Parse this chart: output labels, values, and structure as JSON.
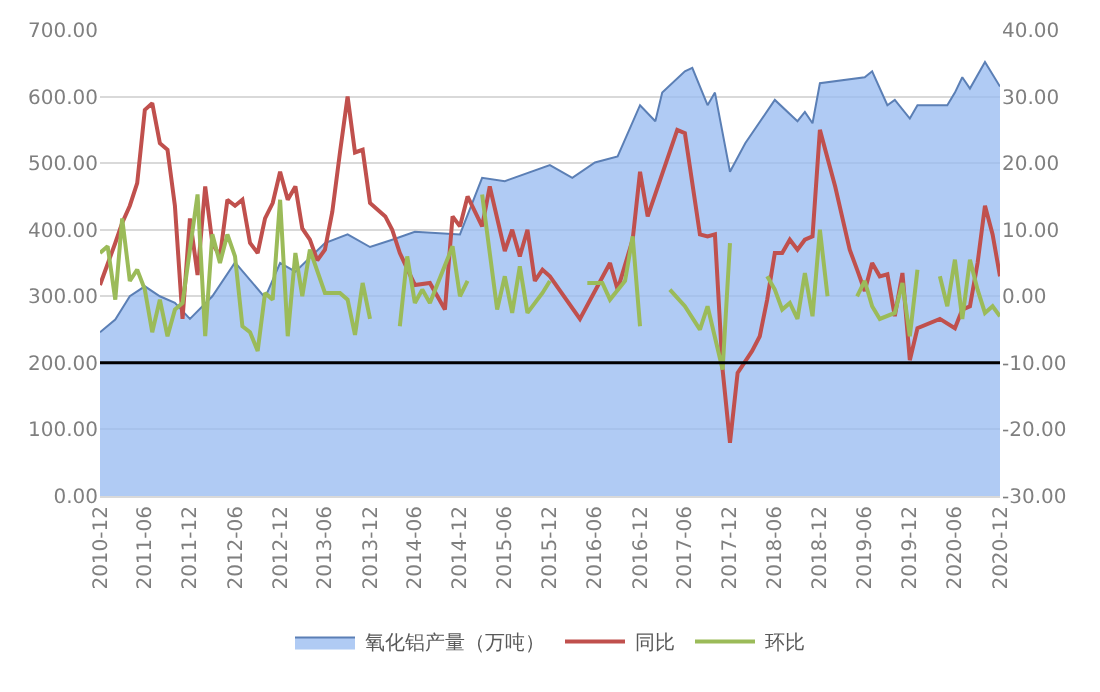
{
  "chart_data": {
    "type": "line",
    "xlim": [
      "2010-12",
      "2020-12"
    ],
    "xticks": [
      {
        "value": "2010-12",
        "label": "2010-12"
      },
      {
        "value": "2011-06",
        "label": "2011-06"
      },
      {
        "value": "2011-12",
        "label": "2011-12"
      },
      {
        "value": "2012-06",
        "label": "2012-06"
      },
      {
        "value": "2012-12",
        "label": "2012-12"
      },
      {
        "value": "2013-06",
        "label": "2013-06"
      },
      {
        "value": "2013-12",
        "label": "2013-12"
      },
      {
        "value": "2014-06",
        "label": "2014-06"
      },
      {
        "value": "2014-12",
        "label": "2014-12"
      },
      {
        "value": "2015-06",
        "label": "2015-06"
      },
      {
        "value": "2015-12",
        "label": "2015-12"
      },
      {
        "value": "2016-06",
        "label": "2016-06"
      },
      {
        "value": "2016-12",
        "label": "2016-12"
      },
      {
        "value": "2017-06",
        "label": "2017-06"
      },
      {
        "value": "2017-12",
        "label": "2017-12"
      },
      {
        "value": "2018-06",
        "label": "2018-06"
      },
      {
        "value": "2018-12",
        "label": "2018-12"
      },
      {
        "value": "2019-06",
        "label": "2019-06"
      },
      {
        "value": "2019-12",
        "label": "2019-12"
      },
      {
        "value": "2020-06",
        "label": "2020-06"
      },
      {
        "value": "2020-12",
        "label": "2020-12"
      }
    ],
    "ylim": [
      0,
      700
    ],
    "yticks": [
      {
        "value": 0,
        "label": "0.00"
      },
      {
        "value": 100,
        "label": "100.00"
      },
      {
        "value": 200,
        "label": "200.00"
      },
      {
        "value": 300,
        "label": "300.00"
      },
      {
        "value": 400,
        "label": "400.00"
      },
      {
        "value": 500,
        "label": "500.00"
      },
      {
        "value": 600,
        "label": "600.00"
      },
      {
        "value": 700,
        "label": "700.00"
      }
    ],
    "y2lim": [
      -30,
      40
    ],
    "y2ticks": [
      {
        "value": -30,
        "label": "-30.00"
      },
      {
        "value": -20,
        "label": "-20.00"
      },
      {
        "value": -10,
        "label": "-10.00"
      },
      {
        "value": 0,
        "label": "0.00"
      },
      {
        "value": 10,
        "label": "10.00"
      },
      {
        "value": 20,
        "label": "20.00"
      },
      {
        "value": 30,
        "label": "30.00"
      },
      {
        "value": 40,
        "label": "40.00"
      }
    ],
    "grid": "y",
    "legend": "bottom",
    "ref_lines": [
      {
        "axis": "y",
        "value": 200,
        "color": "#000000"
      }
    ],
    "series": [
      {
        "name": "氧化铝产量（万吨）",
        "type": "area",
        "color": "#5b7fb5",
        "x": [
          "2010-12",
          "2011-02",
          "2011-04",
          "2011-06",
          "2011-08",
          "2011-10",
          "2011-12",
          "2012-03",
          "2012-06",
          "2012-10",
          "2012-12",
          "2013-02",
          "2013-06",
          "2013-09",
          "2013-12",
          "2014-03",
          "2014-06",
          "2014-12",
          "2015-03",
          "2015-06",
          "2015-12",
          "2016-03",
          "2016-06",
          "2016-09",
          "2016-12",
          "2017-02",
          "2017-03",
          "2017-06",
          "2017-07",
          "2017-09",
          "2017-10",
          "2017-12",
          "2018-02",
          "2018-06",
          "2018-09",
          "2018-10",
          "2018-11",
          "2018-12",
          "2019-06",
          "2019-07",
          "2019-09",
          "2019-10",
          "2019-12",
          "2020-01",
          "2020-05",
          "2020-06",
          "2020-07",
          "2020-08",
          "2020-10",
          "2020-12"
        ],
        "values": [
          246,
          265,
          300,
          315,
          300,
          290,
          266,
          300,
          351,
          298,
          350,
          337,
          380,
          393,
          374,
          385,
          397,
          393,
          478,
          473,
          497,
          478,
          501,
          510,
          587,
          563,
          606,
          638,
          643,
          587,
          606,
          487,
          530,
          595,
          563,
          577,
          560,
          620,
          629,
          638,
          587,
          595,
          567,
          587,
          587,
          606,
          629,
          612,
          652,
          615
        ]
      },
      {
        "name": "同比",
        "axis": "y2",
        "color": "#c0504d",
        "x": [
          "2010-12",
          "2011-02",
          "2011-03",
          "2011-04",
          "2011-05",
          "2011-06",
          "2011-07",
          "2011-08",
          "2011-09",
          "2011-10",
          "2011-11",
          "2011-12",
          "2012-01",
          "2012-02",
          "2012-03",
          "2012-04",
          "2012-05",
          "2012-06",
          "2012-07",
          "2012-08",
          "2012-09",
          "2012-10",
          "2012-11",
          "2012-12",
          "2013-01",
          "2013-02",
          "2013-03",
          "2013-04",
          "2013-05",
          "2013-06",
          "2013-07",
          "2013-08",
          "2013-09",
          "2013-10",
          "2013-11",
          "2013-12",
          "2014-02",
          "2014-03",
          "2014-04",
          "2014-06",
          "2014-08",
          "2014-10",
          "2014-11",
          "2014-12",
          "2015-01",
          "2015-03",
          "2015-04",
          "2015-06",
          "2015-07",
          "2015-08",
          "2015-09",
          "2015-10",
          "2015-11",
          "2015-12",
          "2016-04",
          "2016-08",
          "2016-09",
          "2016-11",
          "2016-12",
          "2017-01",
          "2017-05",
          "2017-06",
          "2017-08",
          "2017-09",
          "2017-10",
          "2017-11",
          "2017-12",
          "2018-01",
          "2018-03",
          "2018-04",
          "2018-05",
          "2018-06",
          "2018-07",
          "2018-08",
          "2018-09",
          "2018-10",
          "2018-11",
          "2018-12",
          "2019-02",
          "2019-04",
          "2019-05",
          "2019-06",
          "2019-07",
          "2019-08",
          "2019-09",
          "2019-10",
          "2019-11",
          "2019-12",
          "2020-01",
          "2020-04",
          "2020-06",
          "2020-07",
          "2020-08",
          "2020-09",
          "2020-10",
          "2020-11",
          "2020-12"
        ],
        "values": [
          1.7,
          8,
          11,
          13.6,
          17,
          28,
          29,
          23,
          22,
          13.6,
          -3.4,
          11.7,
          3.2,
          16.5,
          8,
          6,
          14.5,
          13.6,
          14.5,
          8,
          6.5,
          11.7,
          14,
          18.7,
          14.5,
          16.5,
          10.2,
          8.5,
          5.4,
          7,
          12.7,
          21.6,
          30,
          21.6,
          22,
          14,
          12,
          10,
          6.5,
          1.7,
          2,
          -2,
          12,
          10.5,
          15,
          10.5,
          16.5,
          6.8,
          10,
          6,
          10,
          2.3,
          4,
          3,
          -3.4,
          5,
          1,
          8.5,
          18.7,
          12,
          25,
          24.5,
          9.3,
          9,
          9.3,
          -11,
          -22,
          -11.5,
          -8.2,
          -6,
          -0.5,
          6.5,
          6.5,
          8.5,
          7,
          8.5,
          9,
          25,
          16.5,
          7,
          4,
          0.8,
          5,
          3,
          3.3,
          -3,
          3.5,
          -9.6,
          -4.8,
          -3.4,
          -4.8,
          -2,
          -1.5,
          5,
          13.6,
          9.3,
          3
        ]
      },
      {
        "name": "环比",
        "axis": "y2",
        "color": "#9bbb59",
        "x": [
          "2010-12",
          "2011-01",
          "2011-02",
          "2011-03",
          "2011-04",
          "2011-05",
          "2011-06",
          "2011-07",
          "2011-08",
          "2011-09",
          "2011-10",
          "2011-11",
          "2012-01",
          "2012-02",
          "2012-03",
          "2012-04",
          "2012-05",
          "2012-06",
          "2012-07",
          "2012-08",
          "2012-09",
          "2012-10",
          "2012-11",
          "2012-12",
          "2013-01",
          "2013-02",
          "2013-03",
          "2013-04",
          "2013-06",
          "2013-08",
          "2013-09",
          "2013-10",
          "2013-11",
          "2013-12",
          "2014-02",
          "2014-04",
          "2014-05",
          "2014-06",
          "2014-07",
          "2014-08",
          "2014-11",
          "2014-12",
          "2015-01",
          "2015-02",
          "2015-03",
          "2015-05",
          "2015-06",
          "2015-07",
          "2015-08",
          "2015-09",
          "2015-11",
          "2015-12",
          "2016-02",
          "2016-05",
          "2016-07",
          "2016-08",
          "2016-10",
          "2016-11",
          "2016-12",
          "2017-02",
          "2017-04",
          "2017-06",
          "2017-08",
          "2017-09",
          "2017-11",
          "2017-12",
          "2018-02",
          "2018-05",
          "2018-06",
          "2018-07",
          "2018-08",
          "2018-09",
          "2018-10",
          "2018-11",
          "2018-12",
          "2019-01",
          "2019-03",
          "2019-05",
          "2019-06",
          "2019-07",
          "2019-08",
          "2019-10",
          "2019-11",
          "2019-12",
          "2020-01",
          "2020-02",
          "2020-04",
          "2020-05",
          "2020-06",
          "2020-07",
          "2020-08",
          "2020-09",
          "2020-10",
          "2020-11",
          "2020-12"
        ],
        "values": [
          6.5,
          7.5,
          -0.5,
          11.7,
          2.3,
          4,
          1,
          -5.4,
          -0.5,
          -6,
          -2,
          -1,
          15.3,
          -6,
          9.3,
          5,
          9.3,
          6,
          -4.5,
          -5.4,
          -8.2,
          0.5,
          -0.5,
          14.5,
          -6,
          6.5,
          0,
          7,
          0.5,
          0.5,
          -0.5,
          -5.8,
          2,
          -3.4,
          null,
          -4.5,
          6,
          -1,
          1,
          -1,
          7.5,
          0,
          2.3,
          null,
          15.3,
          -2,
          3,
          -2.5,
          4.5,
          -2.5,
          0.5,
          2.3,
          null,
          2,
          2,
          -0.5,
          2.3,
          9,
          -4.5,
          null,
          1,
          -1.5,
          -5,
          -1.5,
          -11,
          8,
          null,
          3,
          1,
          -2,
          -1,
          -3.4,
          3.5,
          -3,
          10,
          0,
          null,
          0,
          2.3,
          -1.5,
          -3.4,
          -2.5,
          2,
          -6,
          4,
          null,
          3,
          -1.5,
          5.5,
          -3.4,
          5.5,
          1,
          -2.5,
          -1.5,
          -3
        ]
      }
    ]
  }
}
